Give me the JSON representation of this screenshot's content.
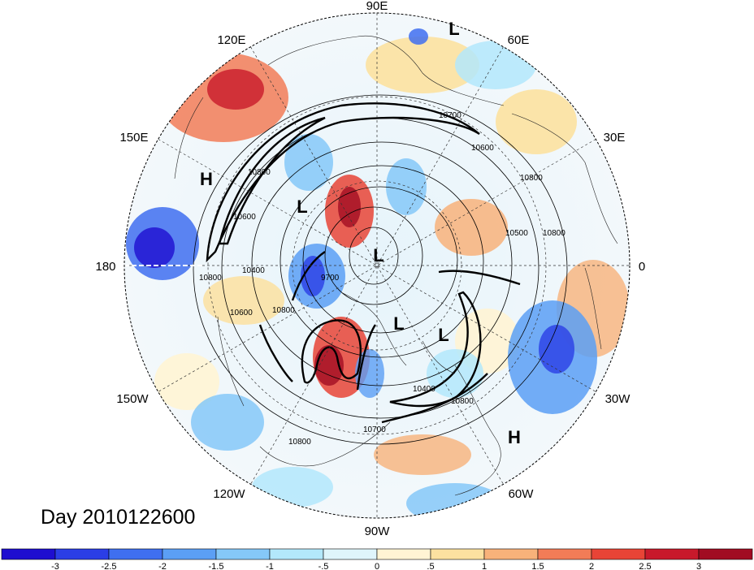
{
  "title": "Day 2010122600",
  "projection": "north-polar-stereographic",
  "longitude_labels": [
    {
      "text": "90E",
      "lon": 90
    },
    {
      "text": "60E",
      "lon": 60
    },
    {
      "text": "30E",
      "lon": 30
    },
    {
      "text": "0",
      "lon": 0
    },
    {
      "text": "30W",
      "lon": -30
    },
    {
      "text": "60W",
      "lon": -60
    },
    {
      "text": "90W",
      "lon": -90
    },
    {
      "text": "120W",
      "lon": -120
    },
    {
      "text": "150W",
      "lon": -150
    },
    {
      "text": "180",
      "lon": 180
    },
    {
      "text": "150E",
      "lon": 150
    },
    {
      "text": "120E",
      "lon": 120
    }
  ],
  "pressure_centers": [
    {
      "type": "L",
      "lon": 75,
      "lat": 30
    },
    {
      "type": "L",
      "lon": 125,
      "lat": 68
    },
    {
      "type": "L",
      "lon": 160,
      "lat": 87
    },
    {
      "type": "L",
      "lon": -80,
      "lat": 72
    },
    {
      "type": "L",
      "lon": -55,
      "lat": 65
    },
    {
      "type": "H",
      "lon": 148,
      "lat": 30
    },
    {
      "type": "H",
      "lon": -55,
      "lat": 24
    }
  ],
  "contour_labels": [
    {
      "text": "10700",
      "lon": 70,
      "lat": 55
    },
    {
      "text": "10600",
      "lon": 52,
      "lat": 52
    },
    {
      "text": "10800",
      "lon": 40,
      "lat": 48
    },
    {
      "text": "10500",
      "lon": 22,
      "lat": 55
    },
    {
      "text": "10800",
      "lon": 20,
      "lat": 38
    },
    {
      "text": "10800",
      "lon": 135,
      "lat": 55
    },
    {
      "text": "10600",
      "lon": 160,
      "lat": 45
    },
    {
      "text": "10400",
      "lon": 160,
      "lat": 68
    },
    {
      "text": "9700",
      "lon": 165,
      "lat": 87
    },
    {
      "text": "10800",
      "lon": 178,
      "lat": 38
    },
    {
      "text": "10600",
      "lon": -165,
      "lat": 58
    },
    {
      "text": "10800",
      "lon": -160,
      "lat": 45
    },
    {
      "text": "10800",
      "lon": -110,
      "lat": 28
    },
    {
      "text": "10700",
      "lon": -90,
      "lat": 39
    },
    {
      "text": "10800",
      "lon": -40,
      "lat": 40
    },
    {
      "text": "10400",
      "lon": -60,
      "lat": 56
    }
  ],
  "colorbar": {
    "colors": [
      "#1e0ed0",
      "#2b3ee6",
      "#3f6ff0",
      "#5b9ff5",
      "#85c8f8",
      "#b3e8fb",
      "#dff5fb",
      "#fff4d4",
      "#fce1a0",
      "#f8b27a",
      "#f27c57",
      "#e84436",
      "#c8192b",
      "#a10c22"
    ],
    "labels": [
      "-3",
      "-2.5",
      "-2",
      "-1.5",
      "-1",
      "-.5",
      "0",
      ".5",
      "1",
      "1.5",
      "2",
      "2.5",
      "3"
    ]
  }
}
